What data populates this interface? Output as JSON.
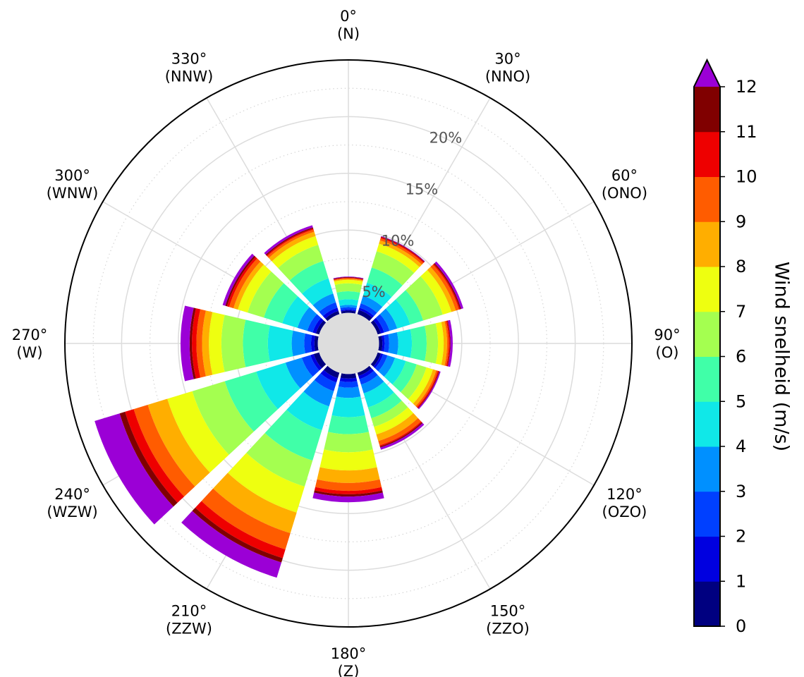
{
  "chart_data": {
    "type": "wind-rose",
    "title": "",
    "radial_axis": {
      "ticks": [
        5,
        10,
        15,
        20
      ],
      "tick_labels": [
        "5%",
        "10%",
        "15%",
        "20%"
      ],
      "max": 25,
      "grid": true,
      "minor_grid_step": 2.5,
      "label_angle_deg": 25
    },
    "direction_labels": [
      {
        "angle": 0,
        "deg": "0°",
        "name": "(N)"
      },
      {
        "angle": 30,
        "deg": "30°",
        "name": "(NNO)"
      },
      {
        "angle": 60,
        "deg": "60°",
        "name": "(ONO)"
      },
      {
        "angle": 90,
        "deg": "90°",
        "name": "(O)"
      },
      {
        "angle": 120,
        "deg": "120°",
        "name": "(OZO)"
      },
      {
        "angle": 150,
        "deg": "150°",
        "name": "(ZZO)"
      },
      {
        "angle": 180,
        "deg": "180°",
        "name": "(Z)"
      },
      {
        "angle": 210,
        "deg": "210°",
        "name": "(ZZW)"
      },
      {
        "angle": 240,
        "deg": "240°",
        "name": "(WZW)"
      },
      {
        "angle": 270,
        "deg": "270°",
        "name": "(W)"
      },
      {
        "angle": 300,
        "deg": "300°",
        "name": "(WNW)"
      },
      {
        "angle": 330,
        "deg": "330°",
        "name": "(NNW)"
      }
    ],
    "center_calm_radius_pct": 2.7,
    "sector_width_deg": 26,
    "speed_bins": [
      {
        "range": "0-1",
        "color": "#000080"
      },
      {
        "range": "1-2",
        "color": "#0000e0"
      },
      {
        "range": "2-3",
        "color": "#0040ff"
      },
      {
        "range": "3-4",
        "color": "#0090ff"
      },
      {
        "range": "4-5",
        "color": "#10e8e8"
      },
      {
        "range": "5-6",
        "color": "#40ffa8"
      },
      {
        "range": "6-7",
        "color": "#a4ff50"
      },
      {
        "range": "7-8",
        "color": "#eeff10"
      },
      {
        "range": "8-9",
        "color": "#ffae00"
      },
      {
        "range": "9-10",
        "color": "#ff5c00"
      },
      {
        "range": "10-11",
        "color": "#ee0000"
      },
      {
        "range": "11-12",
        "color": "#800000"
      },
      {
        "range": ">12",
        "color": "#9b00d6"
      }
    ],
    "sectors": [
      {
        "direction": 0,
        "cumulative_pct": [
          2.9,
          3.0,
          3.2,
          3.4,
          3.9,
          4.6,
          5.3,
          5.6,
          5.7,
          5.75,
          5.8,
          5.85,
          5.9
        ]
      },
      {
        "direction": 30,
        "cumulative_pct": [
          3.1,
          3.3,
          3.7,
          4.4,
          5.6,
          7.0,
          8.5,
          9.2,
          9.5,
          9.7,
          9.8,
          9.85,
          9.9
        ]
      },
      {
        "direction": 60,
        "cumulative_pct": [
          3.0,
          3.3,
          3.8,
          4.5,
          5.7,
          6.9,
          8.7,
          9.5,
          9.9,
          10.2,
          10.3,
          10.4,
          10.6
        ]
      },
      {
        "direction": 90,
        "cumulative_pct": [
          3.0,
          3.2,
          3.6,
          4.4,
          5.6,
          6.9,
          7.9,
          8.4,
          8.7,
          8.85,
          8.95,
          9.0,
          9.2
        ]
      },
      {
        "direction": 120,
        "cumulative_pct": [
          3.0,
          3.2,
          3.6,
          4.3,
          5.3,
          6.3,
          7.2,
          7.8,
          8.1,
          8.25,
          8.35,
          8.4,
          8.5
        ]
      },
      {
        "direction": 150,
        "cumulative_pct": [
          3.0,
          3.3,
          3.8,
          4.6,
          5.9,
          6.9,
          7.7,
          8.4,
          9.0,
          9.4,
          9.5,
          9.6,
          9.8
        ]
      },
      {
        "direction": 180,
        "cumulative_pct": [
          3.1,
          3.4,
          3.9,
          4.8,
          6.5,
          8.0,
          9.6,
          11.2,
          12.3,
          13.0,
          13.3,
          13.5,
          14.0
        ]
      },
      {
        "direction": 210,
        "cumulative_pct": [
          3.2,
          3.6,
          4.4,
          5.8,
          8.0,
          10.8,
          13.2,
          15.6,
          17.5,
          19.0,
          19.8,
          20.2,
          21.6
        ]
      },
      {
        "direction": 240,
        "cumulative_pct": [
          3.2,
          3.5,
          4.3,
          5.8,
          8.5,
          11.4,
          14.4,
          16.7,
          18.5,
          19.8,
          20.6,
          21.1,
          23.4
        ]
      },
      {
        "direction": 270,
        "cumulative_pct": [
          3.0,
          3.3,
          3.9,
          5.0,
          7.1,
          9.3,
          11.2,
          12.3,
          12.9,
          13.4,
          13.8,
          14.0,
          14.8
        ]
      },
      {
        "direction": 300,
        "cumulative_pct": [
          3.0,
          3.3,
          3.8,
          4.7,
          6.1,
          7.8,
          9.3,
          10.2,
          10.6,
          11.0,
          11.2,
          11.35,
          11.6
        ]
      },
      {
        "direction": 330,
        "cumulative_pct": [
          3.0,
          3.3,
          3.8,
          4.6,
          6.0,
          7.6,
          9.1,
          9.9,
          10.3,
          10.5,
          10.6,
          10.7,
          10.9
        ]
      }
    ],
    "colorbar": {
      "label": "Wind snelheid (m/s)",
      "ticks": [
        "0",
        "1",
        "2",
        "3",
        "4",
        "5",
        "6",
        "7",
        "8",
        "9",
        "10",
        "11",
        "12"
      ],
      "extend": "max"
    }
  }
}
